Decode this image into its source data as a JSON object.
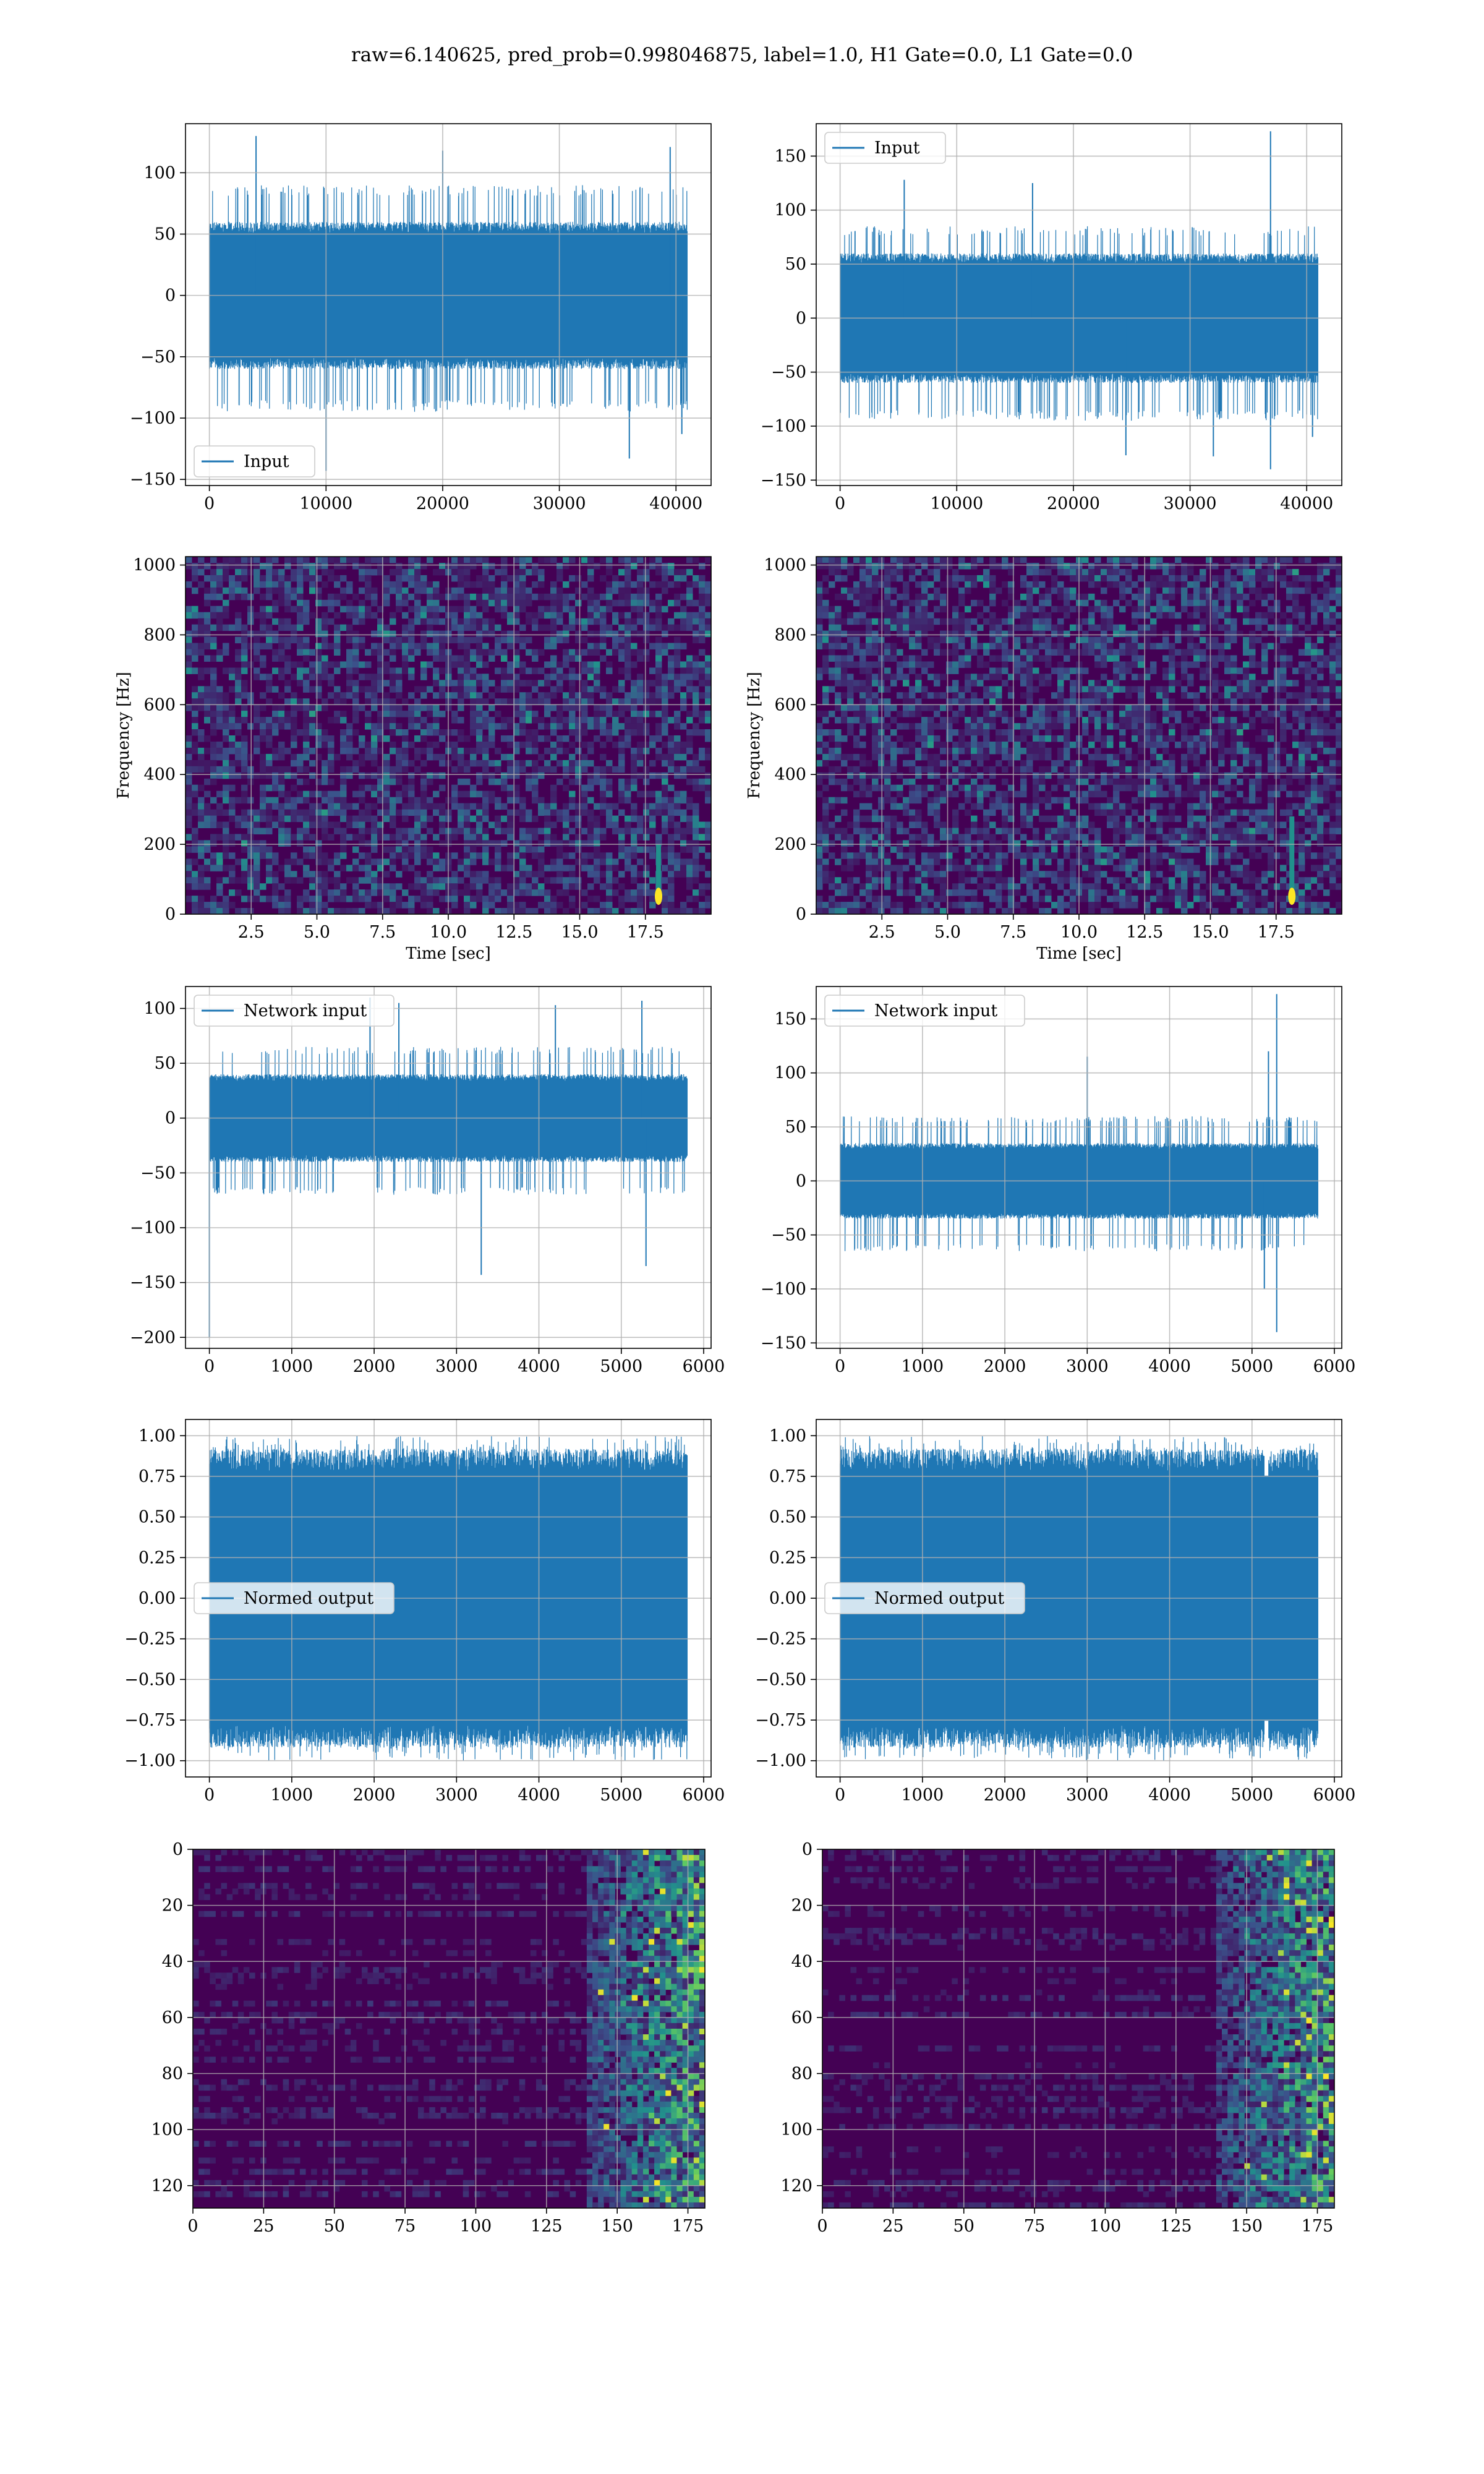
{
  "suptitle": "raw=6.140625, pred_prob=0.998046875, label=1.0, H1 Gate=0.0, L1 Gate=0.0",
  "colors": {
    "series": "#1f77b4",
    "grid": "#b0b0b0",
    "viridis_low": "#440154",
    "viridis_mid": "#21918c",
    "viridis_high": "#fde725"
  },
  "chart_data": [
    {
      "id": "r0c0",
      "type": "line",
      "title": "",
      "xlabel": "",
      "ylabel": "",
      "legend": "Input",
      "legend_loc": "lower-left",
      "xlim": [
        -2048,
        43008
      ],
      "ylim": [
        -155,
        140
      ],
      "xticks": [
        0,
        10000,
        20000,
        30000,
        40000
      ],
      "yticks": [
        -150,
        -100,
        -50,
        0,
        50,
        100
      ],
      "grid": true,
      "samples": 40960,
      "envelope": {
        "typical_upper": 60,
        "typical_lower": -60,
        "outer_upper": 90,
        "outer_lower": -95
      },
      "spikes": [
        [
          4000,
          130
        ],
        [
          10000,
          -143
        ],
        [
          20000,
          118
        ],
        [
          36000,
          -133
        ],
        [
          39500,
          121
        ],
        [
          40500,
          -113
        ]
      ]
    },
    {
      "id": "r0c1",
      "type": "line",
      "title": "",
      "xlabel": "",
      "ylabel": "",
      "legend": "Input",
      "legend_loc": "upper-left",
      "xlim": [
        -2048,
        43008
      ],
      "ylim": [
        -155,
        180
      ],
      "xticks": [
        0,
        10000,
        20000,
        30000,
        40000
      ],
      "yticks": [
        -150,
        -100,
        -50,
        0,
        50,
        100,
        150
      ],
      "grid": true,
      "samples": 40960,
      "envelope": {
        "typical_upper": 60,
        "typical_lower": -60,
        "outer_upper": 85,
        "outer_lower": -95
      },
      "spikes": [
        [
          5500,
          128
        ],
        [
          16500,
          125
        ],
        [
          24500,
          -127
        ],
        [
          32000,
          -128
        ],
        [
          36900,
          173
        ],
        [
          36900,
          -140
        ],
        [
          40500,
          -110
        ]
      ]
    },
    {
      "id": "r1c0",
      "type": "heatmap",
      "title": "",
      "xlabel": "Time [sec]",
      "ylabel": "Frequency [Hz]",
      "xlim": [
        0,
        20
      ],
      "ylim": [
        0,
        1024
      ],
      "xticks": [
        2.5,
        5.0,
        7.5,
        10.0,
        12.5,
        15.0,
        17.5
      ],
      "yticks": [
        0,
        200,
        400,
        600,
        800,
        1000
      ],
      "grid": true,
      "colormap": "viridis",
      "bright_spot": {
        "time": 18.0,
        "freq_low": 30,
        "freq_high": 200
      }
    },
    {
      "id": "r1c1",
      "type": "heatmap",
      "title": "",
      "xlabel": "Time [sec]",
      "ylabel": "Frequency [Hz]",
      "xlim": [
        0,
        20
      ],
      "ylim": [
        0,
        1024
      ],
      "xticks": [
        2.5,
        5.0,
        7.5,
        10.0,
        12.5,
        15.0,
        17.5
      ],
      "yticks": [
        0,
        200,
        400,
        600,
        800,
        1000
      ],
      "grid": true,
      "colormap": "viridis",
      "bright_spot": {
        "time": 18.1,
        "freq_low": 30,
        "freq_high": 280
      }
    },
    {
      "id": "r2c0",
      "type": "line",
      "title": "",
      "xlabel": "",
      "ylabel": "",
      "legend": "Network input",
      "legend_loc": "upper-left",
      "xlim": [
        -290,
        6090
      ],
      "ylim": [
        -210,
        120
      ],
      "xticks": [
        0,
        1000,
        2000,
        3000,
        4000,
        5000,
        6000
      ],
      "yticks": [
        -200,
        -150,
        -100,
        -50,
        0,
        50,
        100
      ],
      "grid": true,
      "samples": 5800,
      "envelope": {
        "typical_upper": 40,
        "typical_lower": -40,
        "outer_upper": 65,
        "outer_lower": -70
      },
      "spikes": [
        [
          0,
          -200
        ],
        [
          1950,
          110
        ],
        [
          2300,
          105
        ],
        [
          3300,
          -143
        ],
        [
          4200,
          103
        ],
        [
          5250,
          107
        ],
        [
          5300,
          -135
        ]
      ]
    },
    {
      "id": "r2c1",
      "type": "line",
      "title": "",
      "xlabel": "",
      "ylabel": "",
      "legend": "Network input",
      "legend_loc": "upper-left",
      "xlim": [
        -290,
        6090
      ],
      "ylim": [
        -155,
        180
      ],
      "xticks": [
        0,
        1000,
        2000,
        3000,
        4000,
        5000,
        6000
      ],
      "yticks": [
        -150,
        -100,
        -50,
        0,
        50,
        100,
        150
      ],
      "grid": true,
      "samples": 5800,
      "envelope": {
        "typical_upper": 35,
        "typical_lower": -35,
        "outer_upper": 60,
        "outer_lower": -65
      },
      "spikes": [
        [
          3000,
          115
        ],
        [
          5200,
          120
        ],
        [
          5300,
          173
        ],
        [
          5300,
          -140
        ],
        [
          5150,
          -100
        ]
      ]
    },
    {
      "id": "r3c0",
      "type": "line",
      "title": "",
      "xlabel": "",
      "ylabel": "",
      "legend": "Normed output",
      "legend_loc": "center-left",
      "xlim": [
        -290,
        6090
      ],
      "ylim": [
        -1.1,
        1.1
      ],
      "xticks": [
        0,
        1000,
        2000,
        3000,
        4000,
        5000,
        6000
      ],
      "yticks": [
        -1.0,
        -0.75,
        -0.5,
        -0.25,
        0.0,
        0.25,
        0.5,
        0.75,
        1.0
      ],
      "grid": true,
      "samples": 5800,
      "envelope": {
        "typical_upper": 0.92,
        "typical_lower": -0.92,
        "outer_upper": 1.0,
        "outer_lower": -1.0
      },
      "spikes": []
    },
    {
      "id": "r3c1",
      "type": "line",
      "title": "",
      "xlabel": "",
      "ylabel": "",
      "legend": "Normed output",
      "legend_loc": "center-left",
      "xlim": [
        -290,
        6090
      ],
      "ylim": [
        -1.1,
        1.1
      ],
      "xticks": [
        0,
        1000,
        2000,
        3000,
        4000,
        5000,
        6000
      ],
      "yticks": [
        -1.0,
        -0.75,
        -0.5,
        -0.25,
        0.0,
        0.25,
        0.5,
        0.75,
        1.0
      ],
      "grid": true,
      "samples": 5800,
      "envelope": {
        "typical_upper": 0.92,
        "typical_lower": -0.92,
        "outer_upper": 1.0,
        "outer_lower": -1.0
      },
      "spikes": [],
      "gap": {
        "from": 5150,
        "to": 5200
      }
    },
    {
      "id": "r4c0",
      "type": "heatmap",
      "title": "",
      "xlabel": "",
      "ylabel": "",
      "xlim": [
        0,
        181
      ],
      "ylim": [
        128,
        0
      ],
      "xticks": [
        0,
        25,
        50,
        75,
        100,
        125,
        150,
        175
      ],
      "yticks": [
        0,
        20,
        40,
        60,
        80,
        100,
        120
      ],
      "grid": true,
      "colormap": "viridis",
      "bright_region": {
        "x_from": 140,
        "x_to": 181
      }
    },
    {
      "id": "r4c1",
      "type": "heatmap",
      "title": "",
      "xlabel": "",
      "ylabel": "",
      "xlim": [
        0,
        181
      ],
      "ylim": [
        128,
        0
      ],
      "xticks": [
        0,
        25,
        50,
        75,
        100,
        125,
        150,
        175
      ],
      "yticks": [
        0,
        20,
        40,
        60,
        80,
        100,
        120
      ],
      "grid": true,
      "colormap": "viridis",
      "bright_region": {
        "x_from": 140,
        "x_to": 181
      }
    }
  ]
}
